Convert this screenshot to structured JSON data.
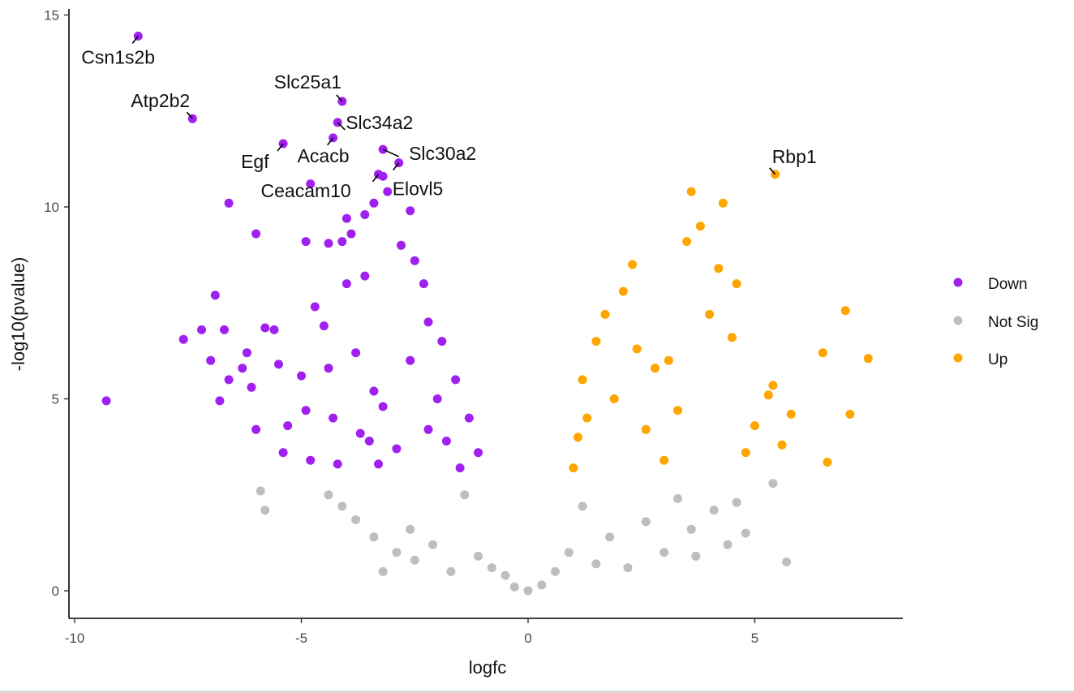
{
  "chart_data": {
    "type": "scatter",
    "title": "",
    "xlabel": "logfc",
    "ylabel": "-log10(pvalue)",
    "xlim": [
      -10.1,
      8.3
    ],
    "ylim": [
      -0.7,
      15.2
    ],
    "x_ticks": [
      -10,
      -5,
      0,
      5
    ],
    "y_ticks": [
      0,
      5,
      10,
      15
    ],
    "x_tick_labels": [
      "-10",
      "-5",
      "0",
      "5"
    ],
    "y_tick_labels": [
      "0",
      "5",
      "10",
      "15"
    ],
    "grid": false,
    "legend_position": "right",
    "thresholds": {
      "logfc_abs": 0.9,
      "neg_log10_p": 3.0
    },
    "colors": {
      "Down": "#a020f0",
      "Not Sig": "#bebebe",
      "Up": "#ffa500"
    },
    "series": [
      {
        "name": "Down",
        "color": "#a020f0",
        "points": [
          [
            -9.3,
            4.95
          ],
          [
            -7.6,
            6.55
          ],
          [
            -7.2,
            6.8
          ],
          [
            -7.0,
            6.0
          ],
          [
            -6.9,
            7.7
          ],
          [
            -6.8,
            4.95
          ],
          [
            -6.7,
            6.8
          ],
          [
            -6.6,
            5.5
          ],
          [
            -6.3,
            5.8
          ],
          [
            -6.2,
            6.2
          ],
          [
            -6.1,
            5.3
          ],
          [
            -6.0,
            4.2
          ],
          [
            -6.0,
            9.3
          ],
          [
            -5.8,
            6.85
          ],
          [
            -5.6,
            6.8
          ],
          [
            -5.5,
            5.9
          ],
          [
            -5.4,
            3.6
          ],
          [
            -5.3,
            4.3
          ],
          [
            -5.0,
            5.6
          ],
          [
            -4.9,
            4.7
          ],
          [
            -4.8,
            3.4
          ],
          [
            -4.7,
            7.4
          ],
          [
            -4.5,
            6.9
          ],
          [
            -4.4,
            5.8
          ],
          [
            -4.3,
            4.5
          ],
          [
            -4.2,
            3.3
          ],
          [
            -4.0,
            8.0
          ],
          [
            -3.8,
            6.2
          ],
          [
            -3.7,
            4.1
          ],
          [
            -3.6,
            8.2
          ],
          [
            -3.5,
            3.9
          ],
          [
            -3.4,
            5.2
          ],
          [
            -3.3,
            3.3
          ],
          [
            -3.2,
            4.8
          ],
          [
            -6.6,
            10.1
          ],
          [
            -4.9,
            9.1
          ],
          [
            -4.4,
            9.05
          ],
          [
            -4.1,
            9.1
          ],
          [
            -3.9,
            9.3
          ],
          [
            -4.0,
            9.7
          ],
          [
            -3.6,
            9.8
          ],
          [
            -3.4,
            10.1
          ],
          [
            -3.1,
            10.4
          ],
          [
            -2.6,
            9.9
          ],
          [
            -2.8,
            9.0
          ],
          [
            -2.5,
            8.6
          ],
          [
            -2.3,
            8.0
          ],
          [
            -2.2,
            7.0
          ],
          [
            -1.9,
            6.5
          ],
          [
            -1.6,
            5.5
          ],
          [
            -1.3,
            4.5
          ],
          [
            -1.1,
            3.6
          ],
          [
            -2.6,
            6.0
          ],
          [
            -2.2,
            4.2
          ],
          [
            -2.9,
            3.7
          ],
          [
            -2.0,
            5.0
          ],
          [
            -1.8,
            3.9
          ],
          [
            -1.5,
            3.2
          ],
          [
            -3.2,
            10.8
          ],
          [
            -4.8,
            10.6
          ]
        ]
      },
      {
        "name": "Not Sig",
        "color": "#bebebe",
        "points": [
          [
            -5.9,
            2.6
          ],
          [
            -5.8,
            2.1
          ],
          [
            -4.4,
            2.5
          ],
          [
            -4.1,
            2.2
          ],
          [
            -3.8,
            1.85
          ],
          [
            -3.4,
            1.4
          ],
          [
            -3.2,
            0.5
          ],
          [
            -2.9,
            1.0
          ],
          [
            -2.6,
            1.6
          ],
          [
            -2.5,
            0.8
          ],
          [
            -2.1,
            1.2
          ],
          [
            -1.7,
            0.5
          ],
          [
            -1.4,
            2.5
          ],
          [
            -1.1,
            0.9
          ],
          [
            -0.8,
            0.6
          ],
          [
            -0.5,
            0.4
          ],
          [
            -0.3,
            0.1
          ],
          [
            0.0,
            0.0
          ],
          [
            0.3,
            0.15
          ],
          [
            0.6,
            0.5
          ],
          [
            0.9,
            1.0
          ],
          [
            1.2,
            2.2
          ],
          [
            1.5,
            0.7
          ],
          [
            1.8,
            1.4
          ],
          [
            2.2,
            0.6
          ],
          [
            2.6,
            1.8
          ],
          [
            3.0,
            1.0
          ],
          [
            3.3,
            2.4
          ],
          [
            3.6,
            1.6
          ],
          [
            3.7,
            0.9
          ],
          [
            4.1,
            2.1
          ],
          [
            4.4,
            1.2
          ],
          [
            4.6,
            2.3
          ],
          [
            4.8,
            1.5
          ],
          [
            5.4,
            2.8
          ],
          [
            5.7,
            0.75
          ]
        ]
      },
      {
        "name": "Up",
        "color": "#ffa500",
        "points": [
          [
            1.0,
            3.2
          ],
          [
            1.1,
            4.0
          ],
          [
            1.2,
            5.5
          ],
          [
            1.3,
            4.5
          ],
          [
            1.5,
            6.5
          ],
          [
            1.7,
            7.2
          ],
          [
            1.9,
            5.0
          ],
          [
            2.1,
            7.8
          ],
          [
            2.3,
            8.5
          ],
          [
            2.4,
            6.3
          ],
          [
            2.6,
            4.2
          ],
          [
            2.8,
            5.8
          ],
          [
            3.0,
            3.4
          ],
          [
            3.1,
            6.0
          ],
          [
            3.3,
            4.7
          ],
          [
            3.5,
            9.1
          ],
          [
            3.6,
            10.4
          ],
          [
            3.8,
            9.5
          ],
          [
            4.0,
            7.2
          ],
          [
            4.2,
            8.4
          ],
          [
            4.3,
            10.1
          ],
          [
            4.5,
            6.6
          ],
          [
            4.6,
            8.0
          ],
          [
            4.8,
            3.6
          ],
          [
            5.0,
            4.3
          ],
          [
            5.3,
            5.1
          ],
          [
            5.4,
            5.35
          ],
          [
            5.6,
            3.8
          ],
          [
            5.8,
            4.6
          ],
          [
            6.5,
            6.2
          ],
          [
            6.6,
            3.35
          ],
          [
            7.0,
            7.3
          ],
          [
            7.1,
            4.6
          ],
          [
            7.5,
            6.05
          ]
        ]
      }
    ],
    "annotations": [
      {
        "label": "Csn1s2b",
        "x": -8.6,
        "y": 14.45
      },
      {
        "label": "Atp2b2",
        "x": -7.4,
        "y": 12.3
      },
      {
        "label": "Slc25a1",
        "x": -4.1,
        "y": 12.75
      },
      {
        "label": "Slc34a2",
        "x": -4.2,
        "y": 12.2
      },
      {
        "label": "Egf",
        "x": -5.4,
        "y": 11.65
      },
      {
        "label": "Acacb",
        "x": -4.3,
        "y": 11.8
      },
      {
        "label": "Slc30a2",
        "x": -3.2,
        "y": 11.5
      },
      {
        "label": "Ceacam10",
        "x": -3.3,
        "y": 10.85
      },
      {
        "label": "Elovl5",
        "x": -2.85,
        "y": 11.15
      },
      {
        "label": "Rbp1",
        "x": 5.45,
        "y": 10.85
      }
    ]
  },
  "legend": {
    "items": [
      {
        "label": "Down",
        "color": "#a020f0"
      },
      {
        "label": "Not Sig",
        "color": "#bebebe"
      },
      {
        "label": "Up",
        "color": "#ffa500"
      }
    ]
  }
}
